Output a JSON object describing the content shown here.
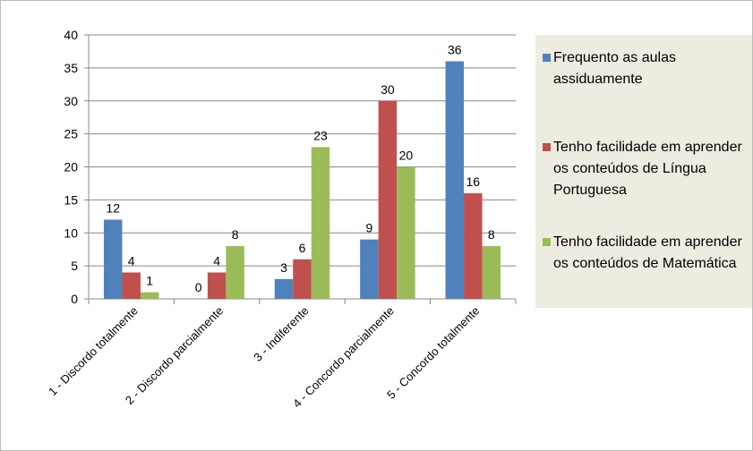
{
  "chart_data": {
    "type": "bar",
    "categories": [
      "1 - Discordo totalmente",
      "2 - Discordo parcialmente",
      "3 - Indiferente",
      "4 - Concordo parcialmente",
      "5 - Concordo totalmente"
    ],
    "series": [
      {
        "name": "Frequento as aulas assiduamente",
        "color": "#4f81bd",
        "values": [
          12,
          0,
          3,
          9,
          36
        ]
      },
      {
        "name": "Tenho facilidade em aprender os conteúdos de Língua Portuguesa",
        "color": "#c0504d",
        "values": [
          4,
          4,
          6,
          30,
          16
        ]
      },
      {
        "name": "Tenho facilidade em aprender os conteúdos de Matemática",
        "color": "#9bbb59",
        "values": [
          1,
          8,
          23,
          20,
          8
        ]
      }
    ],
    "ylim": [
      0,
      40
    ],
    "yticks": [
      0,
      5,
      10,
      15,
      20,
      25,
      30,
      35,
      40
    ],
    "grid": true,
    "legend": "right"
  }
}
